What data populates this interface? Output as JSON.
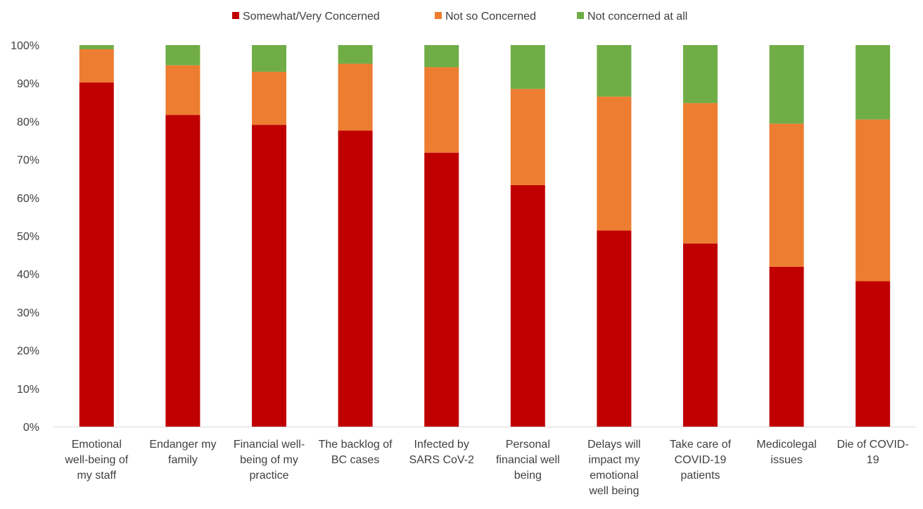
{
  "chart_data": {
    "type": "bar",
    "stacked": true,
    "percent": true,
    "categories": [
      [
        "Emotional",
        "well-being of",
        "my staff"
      ],
      [
        "Endanger my",
        "family"
      ],
      [
        "Financial well-",
        "being of my",
        "practice"
      ],
      [
        "The backlog of",
        "BC cases"
      ],
      [
        "Infected by",
        "SARS CoV-2"
      ],
      [
        "Personal",
        "financial well",
        "being"
      ],
      [
        "Delays will",
        "impact my",
        "emotional",
        "well being"
      ],
      [
        "Take care of",
        "COVID-19",
        "patients"
      ],
      [
        "Medicolegal",
        "issues"
      ],
      [
        "Die of COVID-",
        "19"
      ]
    ],
    "series": [
      {
        "name": "Somewhat/Very Concerned",
        "color": "#C00000",
        "values": [
          90.2,
          81.7,
          79.1,
          77.6,
          71.8,
          63.3,
          51.4,
          48.0,
          41.9,
          38.1
        ]
      },
      {
        "name": "Not so Concerned",
        "color": "#ED7D31",
        "values": [
          8.7,
          13.0,
          13.9,
          17.5,
          22.4,
          25.2,
          35.1,
          36.8,
          37.5,
          42.4
        ]
      },
      {
        "name": "Not concerned at all",
        "color": "#70AD47",
        "values": [
          1.1,
          5.3,
          7.0,
          4.9,
          5.8,
          11.5,
          13.5,
          15.2,
          20.6,
          19.5
        ]
      }
    ],
    "ylim": [
      0,
      100
    ],
    "yticks": [
      "0%",
      "10%",
      "20%",
      "30%",
      "40%",
      "50%",
      "60%",
      "70%",
      "80%",
      "90%",
      "100%"
    ],
    "grid": false,
    "legend_position": "top"
  }
}
